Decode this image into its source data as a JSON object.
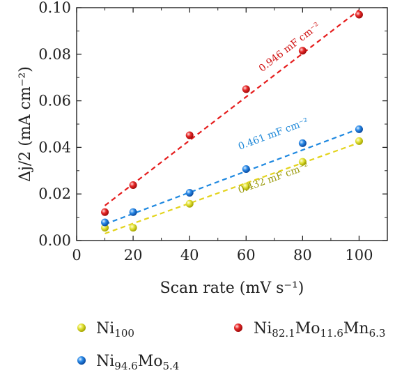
{
  "chart_data": {
    "type": "scatter",
    "xlabel": "Scan rate (mV s⁻¹)",
    "ylabel": "Δj/2 (mA cm⁻²)",
    "xlim": [
      0,
      110
    ],
    "ylim": [
      0,
      0.1
    ],
    "x_ticks": [
      "0",
      "20",
      "40",
      "60",
      "80",
      "100"
    ],
    "y_ticks": [
      "0.00",
      "0.02",
      "0.04",
      "0.06",
      "0.08",
      "0.10"
    ],
    "grid": false,
    "legend_position": "bottom",
    "series": [
      {
        "name": "Ni100",
        "name_base": "Ni",
        "name_sub": "100",
        "color": "#e0e028",
        "fit_color": "#e3d31c",
        "x": [
          10,
          20,
          40,
          60,
          80,
          100
        ],
        "y": [
          0.0055,
          0.0055,
          0.0158,
          0.0232,
          0.0338,
          0.0427
        ],
        "fit": [
          [
            10,
            0.003
          ],
          [
            100,
            0.042
          ]
        ],
        "annotation": "0.432 mF cm⁻²",
        "annotation_color": "#9a9a0a"
      },
      {
        "name": "Ni94.6Mo5.4",
        "name_base": "Ni",
        "name_sub": "94.6",
        "name_base2": "Mo",
        "name_sub2": "5.4",
        "color": "#1e78e0",
        "fit_color": "#1e88e0",
        "x": [
          10,
          20,
          40,
          60,
          80,
          100
        ],
        "y": [
          0.0078,
          0.0122,
          0.0205,
          0.0307,
          0.0418,
          0.0478
        ],
        "fit": [
          [
            10,
            0.007
          ],
          [
            100,
            0.048
          ]
        ],
        "annotation": "0.461 mF cm⁻²",
        "annotation_color": "#1e88d8"
      },
      {
        "name": "Ni82.1Mo11.6Mn6.3",
        "name_base": "Ni",
        "name_sub": "82.1",
        "name_base2": "Mo",
        "name_sub2": "11.6",
        "name_base3": "Mn",
        "name_sub3": "6.3",
        "color": "#e51c1c",
        "fit_color": "#e51c1c",
        "x": [
          10,
          20,
          40,
          60,
          80,
          100
        ],
        "y": [
          0.0122,
          0.0238,
          0.0452,
          0.065,
          0.0815,
          0.097
        ],
        "fit": [
          [
            10,
            0.015
          ],
          [
            100,
            0.099
          ]
        ],
        "annotation": "0.946 mF cm⁻²",
        "annotation_color": "#d01010"
      }
    ]
  }
}
